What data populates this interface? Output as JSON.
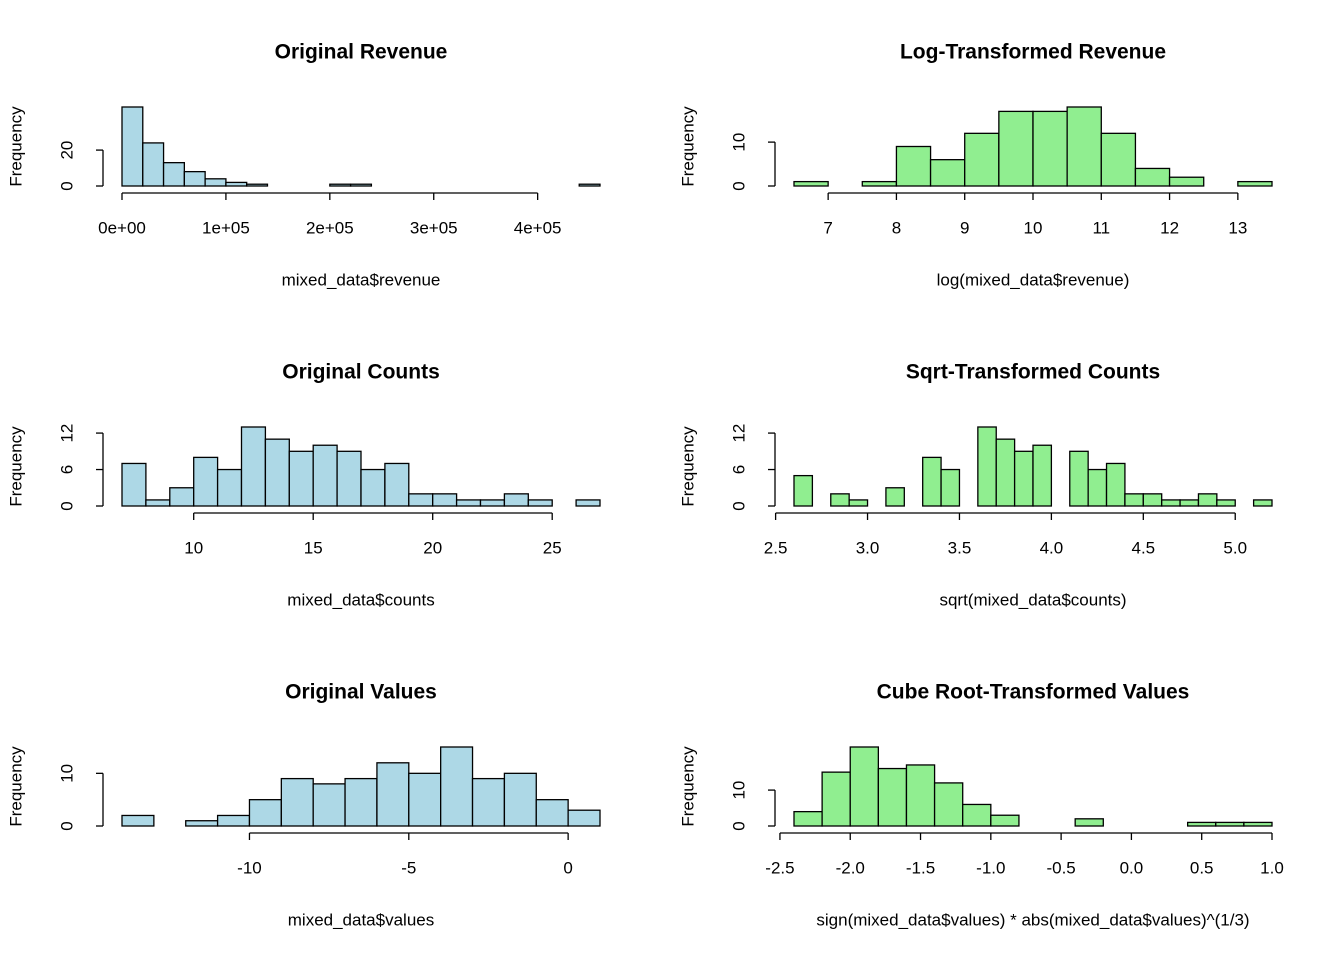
{
  "chart_data": [
    {
      "type": "histogram",
      "title": "Original Revenue",
      "xlabel": "mixed_data$revenue",
      "ylabel": "Frequency",
      "color": "#add8e6",
      "bins": [
        0,
        20000,
        40000,
        60000,
        80000,
        100000,
        120000,
        140000,
        160000,
        180000,
        200000,
        220000,
        240000,
        260000,
        280000,
        300000,
        320000,
        340000,
        360000,
        380000,
        400000,
        420000,
        440000,
        460000
      ],
      "counts": [
        44,
        24,
        13,
        8,
        4,
        2,
        1,
        0,
        0,
        0,
        1,
        1,
        0,
        0,
        0,
        0,
        0,
        0,
        0,
        0,
        0,
        0,
        1
      ],
      "xlim": [
        0,
        460000
      ],
      "ylim": [
        0,
        44
      ],
      "xticks": [
        {
          "value": 0,
          "label": "0e+00"
        },
        {
          "value": 100000,
          "label": "1e+05"
        },
        {
          "value": 200000,
          "label": "2e+05"
        },
        {
          "value": 300000,
          "label": "3e+05"
        },
        {
          "value": 400000,
          "label": "4e+05"
        }
      ],
      "yticks": [
        0,
        20
      ]
    },
    {
      "type": "histogram",
      "title": "Log-Transformed Revenue",
      "xlabel": "log(mixed_data$revenue)",
      "ylabel": "Frequency",
      "color": "#90ee90",
      "bins": [
        6.5,
        7,
        7.5,
        8,
        8.5,
        9,
        9.5,
        10,
        10.5,
        11,
        11.5,
        12,
        12.5,
        13,
        13.5
      ],
      "counts": [
        1,
        0,
        1,
        9,
        6,
        12,
        17,
        17,
        18,
        12,
        4,
        2,
        0,
        1
      ],
      "xlim": [
        6.5,
        13.5
      ],
      "ylim": [
        0,
        18
      ],
      "xticks": [
        7,
        8,
        9,
        10,
        11,
        12,
        13
      ],
      "yticks": [
        0,
        10
      ]
    },
    {
      "type": "histogram",
      "title": "Original Counts",
      "xlabel": "mixed_data$counts",
      "ylabel": "Frequency",
      "color": "#add8e6",
      "bins": [
        7,
        8,
        9,
        10,
        11,
        12,
        13,
        14,
        15,
        16,
        17,
        18,
        19,
        20,
        21,
        22,
        23,
        24,
        25,
        26,
        27
      ],
      "counts": [
        7,
        1,
        3,
        8,
        6,
        13,
        11,
        9,
        10,
        9,
        6,
        7,
        2,
        2,
        1,
        1,
        2,
        1,
        0,
        1
      ],
      "xlim": [
        7,
        27
      ],
      "ylim": [
        0,
        13
      ],
      "xticks": [
        10,
        15,
        20,
        25
      ],
      "yticks": [
        0,
        6,
        12
      ]
    },
    {
      "type": "histogram",
      "title": "Sqrt-Transformed Counts",
      "xlabel": "sqrt(mixed_data$counts)",
      "ylabel": "Frequency",
      "color": "#90ee90",
      "bins": [
        2.6,
        2.7,
        2.8,
        2.9,
        3.0,
        3.1,
        3.2,
        3.3,
        3.4,
        3.5,
        3.6,
        3.7,
        3.8,
        3.9,
        4.0,
        4.1,
        4.2,
        4.3,
        4.4,
        4.5,
        4.6,
        4.7,
        4.8,
        4.9,
        5.0,
        5.1,
        5.2
      ],
      "counts": [
        5,
        0,
        2,
        1,
        0,
        3,
        0,
        8,
        6,
        0,
        13,
        11,
        9,
        10,
        0,
        9,
        6,
        7,
        2,
        2,
        1,
        1,
        2,
        1,
        0,
        1
      ],
      "xlim": [
        2.6,
        5.2
      ],
      "ylim": [
        0,
        13
      ],
      "xticks": [
        2.5,
        {
          "value": 3,
          "label": "3.0"
        },
        3.5,
        {
          "value": 4,
          "label": "4.0"
        },
        4.5,
        {
          "value": 5,
          "label": "5.0"
        }
      ],
      "yticks": [
        0,
        6,
        12
      ]
    },
    {
      "type": "histogram",
      "title": "Original Values",
      "xlabel": "mixed_data$values",
      "ylabel": "Frequency",
      "color": "#add8e6",
      "bins": [
        -14,
        -13,
        -12,
        -11,
        -10,
        -9,
        -8,
        -7,
        -6,
        -5,
        -4,
        -3,
        -2,
        -1,
        0,
        1
      ],
      "counts": [
        2,
        0,
        1,
        2,
        5,
        9,
        8,
        9,
        12,
        10,
        15,
        9,
        10,
        5,
        3
      ],
      "xlim": [
        -14,
        1
      ],
      "ylim": [
        0,
        15
      ],
      "xticks": [
        -10,
        -5,
        0
      ],
      "yticks": [
        0,
        10
      ]
    },
    {
      "type": "histogram",
      "title": "Cube Root-Transformed Values",
      "xlabel": "sign(mixed_data$values) * abs(mixed_data$values)^(1/3)",
      "ylabel": "Frequency",
      "color": "#90ee90",
      "bins": [
        -2.4,
        -2.2,
        -2.0,
        -1.8,
        -1.6,
        -1.4,
        -1.2,
        -1.0,
        -0.8,
        -0.6,
        -0.4,
        -0.2,
        0,
        0.2,
        0.4,
        0.6,
        0.8,
        1.0
      ],
      "counts": [
        4,
        15,
        22,
        16,
        17,
        12,
        6,
        3,
        0,
        0,
        2,
        0,
        0,
        0,
        1,
        1,
        1
      ],
      "xlim": [
        -2.4,
        1.0
      ],
      "ylim": [
        0,
        22
      ],
      "xticks": [
        -2.5,
        {
          "value": -2,
          "label": "-2.0"
        },
        -1.5,
        {
          "value": -1,
          "label": "-1.0"
        },
        -0.5,
        {
          "value": 0,
          "label": "0.0"
        },
        0.5,
        {
          "value": 1,
          "label": "1.0"
        }
      ],
      "yticks": [
        0,
        10
      ]
    }
  ]
}
